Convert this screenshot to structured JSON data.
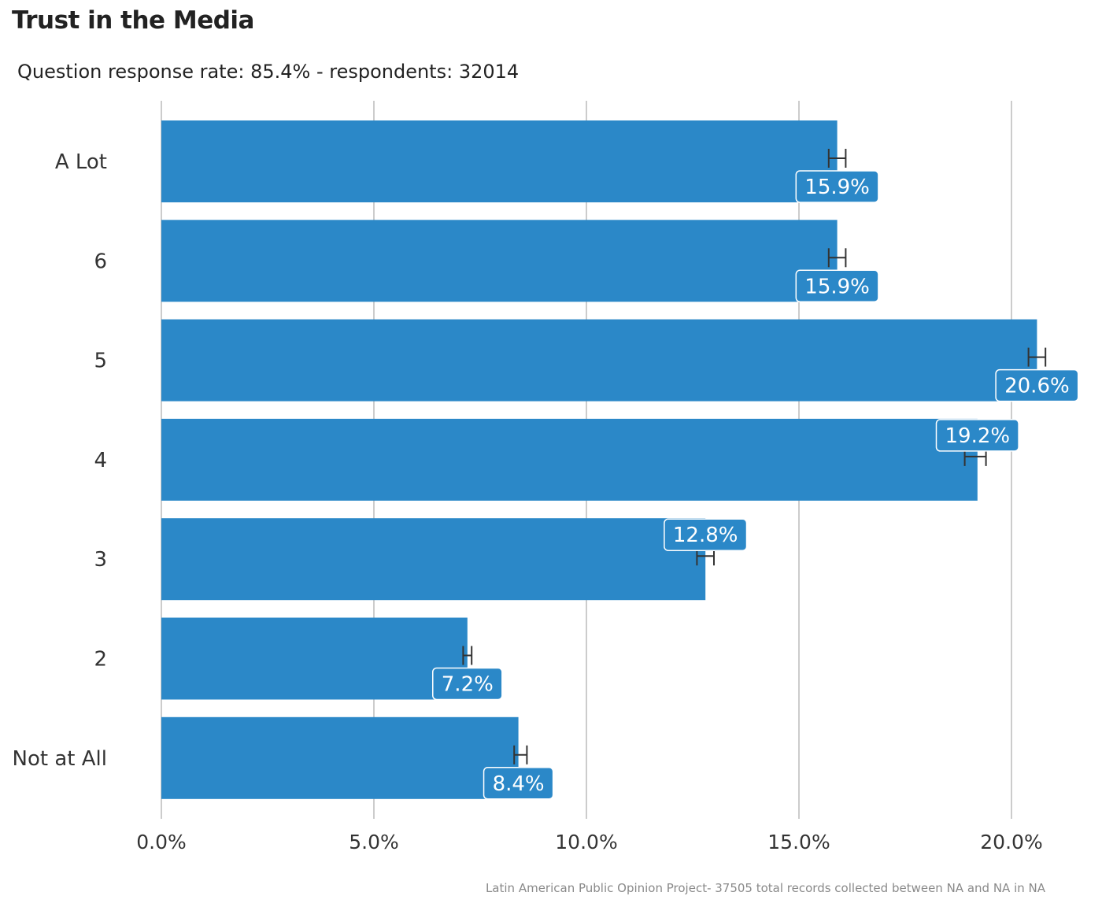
{
  "chart_data": {
    "type": "bar",
    "orientation": "horizontal",
    "title": "Trust in the Media",
    "subtitle": "Question response rate: 85.4%  - respondents: 32014",
    "caption": "Latin American Public Opinion Project- 37505 total records collected between NA and NA in  NA",
    "categories": [
      "A Lot",
      "6",
      "5",
      "4",
      "3",
      "2",
      "Not at All"
    ],
    "values": [
      15.9,
      15.9,
      20.6,
      19.2,
      12.8,
      7.2,
      8.4
    ],
    "error_low": [
      15.7,
      15.7,
      20.4,
      18.9,
      12.6,
      7.1,
      8.3
    ],
    "error_high": [
      16.1,
      16.1,
      20.8,
      19.4,
      13.0,
      7.3,
      8.6
    ],
    "data_labels": [
      "15.9%",
      "15.9%",
      "20.6%",
      "19.2%",
      "12.8%",
      "7.2%",
      "8.4%"
    ],
    "label_position": [
      "below",
      "below",
      "below",
      "above",
      "above",
      "below",
      "below"
    ],
    "x_ticks": [
      0,
      5,
      10,
      15,
      20
    ],
    "x_tick_labels": [
      "0.0%",
      "5.0%",
      "10.0%",
      "15.0%",
      "20.0%"
    ],
    "xlim": [
      0,
      20.9
    ],
    "xlabel": "",
    "ylabel": "",
    "grid": "vertical",
    "colors": {
      "bar": "#2b88c8",
      "error_bar": "#333333",
      "grid": "#cccccc",
      "label_border": "#ffffff"
    }
  }
}
